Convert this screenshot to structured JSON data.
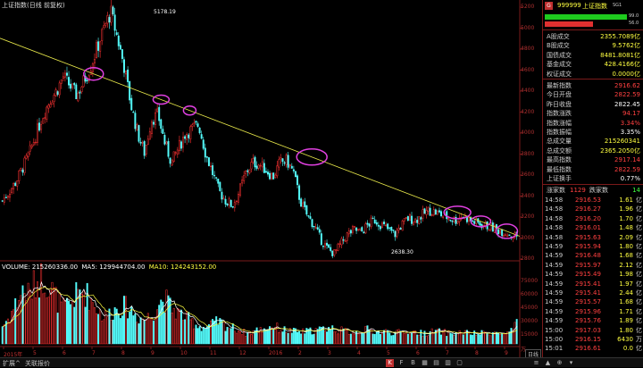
{
  "header": {
    "title": "上证指数(日线 前复权)",
    "peak_label": "5178.19",
    "low_label": "2638.30"
  },
  "volume_header": {
    "vol": "VOLUME: 215260336.00",
    "ma5": "MA5: 129944704.00",
    "ma10": "MA10: 124243152.00"
  },
  "price_axis": [
    "5200",
    "5000",
    "4800",
    "4600",
    "4400",
    "4200",
    "4000",
    "3800",
    "3600",
    "3400",
    "3200",
    "3000",
    "2800"
  ],
  "volume_axis": [
    "75000",
    "60000",
    "45000",
    "30000",
    "15000",
    "万"
  ],
  "x_axis": [
    "2015年",
    "5",
    "6",
    "7",
    "8",
    "9",
    "10",
    "11",
    "12",
    "2016",
    "2",
    "3",
    "4",
    "5",
    "6",
    "7",
    "8",
    "9"
  ],
  "colors": {
    "up": "#ff3232",
    "down": "#54fcfc",
    "trend": "#e8e84a",
    "circle": "#e040e0",
    "ma5": "#ffffff",
    "ma10": "#ffff40"
  },
  "chart_data": {
    "type": "candlestick",
    "title": "上证指数(日线 前复权)",
    "ylim": [
      2638.3,
      5178.19
    ],
    "peak": 5178.19,
    "low": 2638.3,
    "trendline_from": 4900,
    "trendline_to": 2830,
    "price_path": [
      3200,
      3300,
      3400,
      3550,
      3700,
      3900,
      4100,
      4250,
      4350,
      4500,
      4400,
      4300,
      4450,
      4600,
      4800,
      5000,
      5178,
      4900,
      4600,
      4200,
      3900,
      3700,
      4050,
      4100,
      3800,
      3600,
      3750,
      3900,
      3950,
      4000,
      3700,
      3500,
      3300,
      3200,
      3150,
      3300,
      3500,
      3600,
      3580,
      3520,
      3450,
      3600,
      3620,
      3500,
      3200,
      3050,
      2950,
      2800,
      2700,
      2650,
      2750,
      2850,
      2900,
      2870,
      2950,
      3000,
      2950,
      2900,
      2850,
      2950,
      3020,
      3000,
      3050,
      3100,
      3080,
      3050,
      3020,
      3000,
      3050,
      3000,
      2970,
      2950,
      2930,
      2900,
      2880,
      2850,
      2830
    ],
    "volume_path": [
      20000,
      30000,
      45000,
      60000,
      55000,
      70000,
      75000,
      65000,
      50000,
      40000,
      45000,
      55000,
      60000,
      50000,
      40000,
      30000,
      35000,
      40000,
      42000,
      38000,
      30000,
      28000,
      32000,
      45000,
      50000,
      40000,
      35000,
      30000,
      25000,
      20000,
      18000,
      22000,
      25000,
      20000,
      18000,
      15000,
      12000,
      14000,
      16000,
      18000,
      20000,
      17000,
      15000,
      14000,
      13000,
      14000,
      15000,
      16000,
      18000,
      17000,
      15000,
      14000,
      13000,
      15000,
      16000,
      14000,
      13000,
      14000,
      12000,
      13000,
      14000,
      13000,
      12000,
      13000,
      14000,
      13000,
      12000,
      12000,
      13000,
      12000,
      11000,
      12000,
      13000,
      12000,
      11000,
      12000,
      21526
    ]
  },
  "panel": {
    "code": "999999",
    "name": "上证指数",
    "badge": "SG1",
    "bar1_value": "99.0",
    "bar2_value": "56.0",
    "stats": [
      {
        "k": "A股成交",
        "v": "2355.7089亿",
        "c": "#ffff40"
      },
      {
        "k": "B股成交",
        "v": "9.5762亿",
        "c": "#ffff40"
      },
      {
        "k": "国债成交",
        "v": "8481.8081亿",
        "c": "#ffff40"
      },
      {
        "k": "基金成交",
        "v": "428.4166亿",
        "c": "#ffff40"
      },
      {
        "k": "权证成交",
        "v": "0.0000亿",
        "c": "#ffff40"
      }
    ],
    "stats2": [
      {
        "k": "最新指数",
        "v": "2916.62",
        "c": "#ff4040"
      },
      {
        "k": "今日开盘",
        "v": "2822.59",
        "c": "#ff4040"
      },
      {
        "k": "昨日收盘",
        "v": "2822.45",
        "c": "#ffffff"
      },
      {
        "k": "指数涨跌",
        "v": "94.17",
        "c": "#ff4040"
      },
      {
        "k": "指数涨幅",
        "v": "3.34%",
        "c": "#ff4040"
      },
      {
        "k": "指数振幅",
        "v": "3.35%",
        "c": "#ffffff"
      },
      {
        "k": "总成交量",
        "v": "215260341",
        "c": "#ffff40"
      },
      {
        "k": "总成交额",
        "v": "2365.2050亿",
        "c": "#ffff40"
      },
      {
        "k": "最高指数",
        "v": "2917.14",
        "c": "#ff4040"
      },
      {
        "k": "最低指数",
        "v": "2822.59",
        "c": "#ff4040"
      },
      {
        "k": "上证换手",
        "v": "0.77%",
        "c": "#ffffff"
      }
    ],
    "updown": {
      "label1": "涨家数",
      "v1": "1129",
      "label2": "跌家数",
      "v2": "14"
    },
    "ticks": [
      {
        "t": "14:58",
        "p": "2916.53",
        "q": "1.61",
        "u": "亿"
      },
      {
        "t": "14:58",
        "p": "2916.27",
        "q": "1.96",
        "u": "亿"
      },
      {
        "t": "14:58",
        "p": "2916.20",
        "q": "1.70",
        "u": "亿"
      },
      {
        "t": "14:58",
        "p": "2916.01",
        "q": "1.48",
        "u": "亿"
      },
      {
        "t": "14:58",
        "p": "2915.63",
        "q": "2.09",
        "u": "亿"
      },
      {
        "t": "14:59",
        "p": "2915.94",
        "q": "1.80",
        "u": "亿"
      },
      {
        "t": "14:59",
        "p": "2916.48",
        "q": "1.68",
        "u": "亿"
      },
      {
        "t": "14:59",
        "p": "2915.97",
        "q": "2.12",
        "u": "亿"
      },
      {
        "t": "14:59",
        "p": "2915.49",
        "q": "1.98",
        "u": "亿"
      },
      {
        "t": "14:59",
        "p": "2915.41",
        "q": "1.97",
        "u": "亿"
      },
      {
        "t": "14:59",
        "p": "2915.41",
        "q": "2.44",
        "u": "亿"
      },
      {
        "t": "14:59",
        "p": "2915.57",
        "q": "1.68",
        "u": "亿"
      },
      {
        "t": "14:59",
        "p": "2915.96",
        "q": "1.71",
        "u": "亿"
      },
      {
        "t": "14:59",
        "p": "2915.76",
        "q": "1.89",
        "u": "亿"
      },
      {
        "t": "15:00",
        "p": "2917.03",
        "q": "1.80",
        "u": "亿"
      },
      {
        "t": "15:00",
        "p": "2916.15",
        "q": "6430",
        "u": "万"
      },
      {
        "t": "15:01",
        "p": "2916.61",
        "q": "0.0",
        "u": "亿"
      }
    ],
    "tab": "日线"
  },
  "bottom": {
    "tab1": "扩展^",
    "tab2": "关联报价"
  }
}
